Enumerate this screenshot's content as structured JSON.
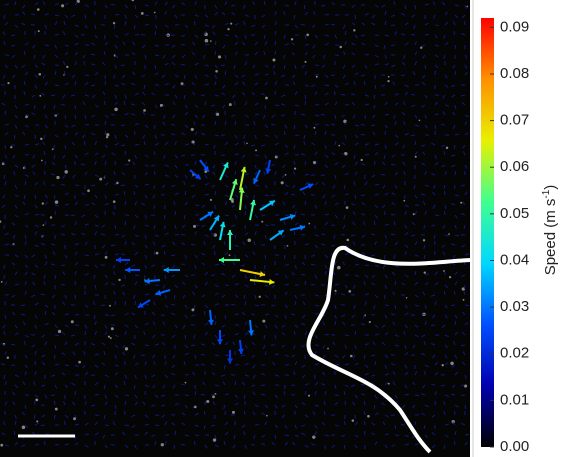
{
  "chart_data": {
    "type": "colorbar",
    "label": [
      "Speed (m s",
      "-1",
      ")"
    ],
    "colors": [
      "#000000",
      "#0000b0",
      "#0050ff",
      "#00d8ff",
      "#40ff90",
      "#e8f000",
      "#ff9000",
      "#ff0000"
    ],
    "ylim": [
      0,
      0.092
    ],
    "yticks": [
      {
        "value": 0,
        "label": "0.00"
      },
      {
        "value": 0.01,
        "label": "0.01"
      },
      {
        "value": 0.02,
        "label": "0.02"
      },
      {
        "value": 0.03,
        "label": "0.03"
      },
      {
        "value": 0.04,
        "label": "0.04"
      },
      {
        "value": 0.05,
        "label": "0.05"
      },
      {
        "value": 0.06,
        "label": "0.06"
      },
      {
        "value": 0.07,
        "label": "0.07"
      },
      {
        "value": 0.08,
        "label": "0.08"
      },
      {
        "value": 0.09,
        "label": "0.09"
      }
    ],
    "vectors": {
      "x": [
        24,
        24,
        23,
        25,
        22,
        24,
        25,
        24,
        23,
        22,
        21,
        20,
        18,
        16,
        14,
        13,
        17,
        15,
        26,
        28,
        30,
        29,
        27,
        21,
        22,
        23,
        24,
        25,
        20,
        19,
        26,
        27
      ],
      "y": [
        19,
        21,
        20,
        22,
        18,
        27,
        28,
        26,
        25,
        24,
        23,
        22,
        27,
        28,
        27,
        26,
        29,
        30,
        21,
        22,
        19,
        23,
        24,
        31,
        33,
        35,
        34,
        32,
        16,
        17,
        17,
        16
      ],
      "dx": [
        0.2,
        0.1,
        0.3,
        0.2,
        0.4,
        1,
        1,
        -1,
        0,
        0.2,
        0.5,
        0.8,
        -1,
        -1,
        -1,
        -1,
        -1,
        -0.8,
        0.8,
        1,
        0.9,
        0.9,
        0.7,
        0.1,
        0,
        0,
        0.1,
        0.1,
        0.6,
        0.7,
        -0.4,
        -0.2
      ],
      "dy": [
        -1,
        -1,
        -1,
        -1,
        -0.9,
        0.2,
        0.1,
        0,
        -1,
        -1,
        -0.8,
        -0.5,
        0,
        0.1,
        0,
        0,
        0.3,
        0.5,
        -0.5,
        -0.3,
        -0.4,
        -0.2,
        -0.5,
        1,
        1,
        1,
        1,
        1,
        0.8,
        0.6,
        0.9,
        1
      ],
      "speed": [
        0.062,
        0.058,
        0.055,
        0.05,
        0.045,
        0.07,
        0.066,
        0.052,
        0.048,
        0.042,
        0.036,
        0.03,
        0.033,
        0.03,
        0.027,
        0.024,
        0.028,
        0.025,
        0.038,
        0.032,
        0.026,
        0.03,
        0.035,
        0.028,
        0.025,
        0.022,
        0.024,
        0.03,
        0.026,
        0.024,
        0.028,
        0.024
      ]
    }
  }
}
